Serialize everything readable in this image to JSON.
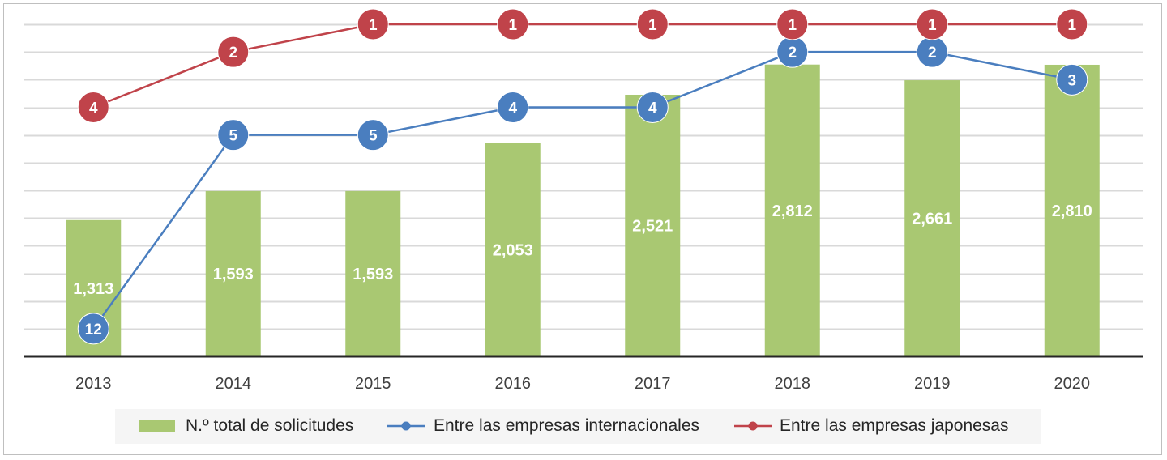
{
  "chart_data": {
    "type": "bar",
    "categories": [
      "2013",
      "2014",
      "2015",
      "2016",
      "2017",
      "2018",
      "2019",
      "2020"
    ],
    "series": [
      {
        "name": "N.º total de solicitudes",
        "type": "bar",
        "color": "#a9c872",
        "values": [
          1313,
          1593,
          1593,
          2053,
          2521,
          2812,
          2661,
          2810
        ],
        "labels": [
          "1,313",
          "1,593",
          "1,593",
          "2,053",
          "2,521",
          "2,812",
          "2,661",
          "2,810"
        ]
      },
      {
        "name": "Entre las empresas internacionales",
        "type": "line",
        "color": "#4a7ebf",
        "values": [
          12,
          5,
          5,
          4,
          4,
          2,
          2,
          3
        ]
      },
      {
        "name": "Entre las empresas japonesas",
        "type": "line",
        "color": "#c0434a",
        "values": [
          4,
          2,
          1,
          1,
          1,
          1,
          1,
          1
        ]
      }
    ],
    "bar_axis": {
      "ylim": [
        0,
        3200
      ]
    },
    "rank_axis": {
      "ylim": [
        13,
        1
      ],
      "reversed": true
    },
    "grid": true,
    "legend": "bottom-center"
  }
}
